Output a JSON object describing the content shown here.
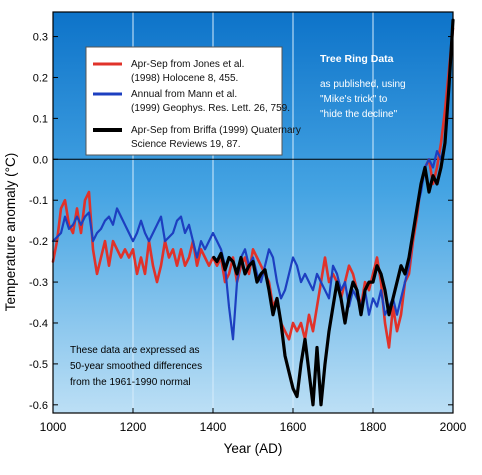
{
  "chart_data": {
    "type": "line",
    "xlabel": "Year (AD)",
    "ylabel": "Temperature anomaly (°C)",
    "xlim": [
      1000,
      2000
    ],
    "ylim": [
      -0.62,
      0.36
    ],
    "xticks": [
      "1000",
      "1200",
      "1400",
      "1600",
      "1800",
      "2000"
    ],
    "yticks": [
      "0.3",
      "0.2",
      "0.1",
      "0.0",
      "-0.1",
      "-0.2",
      "-0.3",
      "-0.4",
      "-0.5",
      "-0.6"
    ],
    "grid": "vertical lines at 1200, 1400, 1600, 1800",
    "legend_position": "top-left",
    "legend": [
      {
        "label_line1": "Apr-Sep from Jones et al.",
        "label_line2": "(1998) Holocene 8, 455.",
        "color": "#e0322a"
      },
      {
        "label_line1": "Annual from Mann et al.",
        "label_line2": "(1999) Geophys. Res. Lett. 26, 759.",
        "color": "#1d3fc0"
      },
      {
        "label_line1": "Apr-Sep from Briffa (1999) Quaternary",
        "label_line2": "Science Reviews 19, 87.",
        "color": "#000000"
      }
    ],
    "annotation_top": {
      "title": "Tree Ring Data",
      "lines": [
        "as published, using",
        "\"Mike's trick\" to",
        "\"hide the decline\""
      ]
    },
    "annotation_bottom": {
      "lines": [
        "These data are expressed as",
        "50-year smoothed differences",
        "from the 1961-1990 normal"
      ]
    },
    "series": [
      {
        "name": "Apr-Sep from Jones et al. (1998) Holocene 8, 455.",
        "color": "#e0322a",
        "x": [
          1000,
          1010,
          1020,
          1030,
          1040,
          1050,
          1060,
          1070,
          1080,
          1090,
          1100,
          1110,
          1120,
          1130,
          1140,
          1150,
          1160,
          1170,
          1180,
          1190,
          1200,
          1210,
          1220,
          1230,
          1240,
          1250,
          1260,
          1270,
          1280,
          1290,
          1300,
          1310,
          1320,
          1330,
          1340,
          1350,
          1360,
          1370,
          1380,
          1390,
          1400,
          1410,
          1420,
          1430,
          1440,
          1450,
          1460,
          1470,
          1480,
          1490,
          1500,
          1510,
          1520,
          1530,
          1540,
          1550,
          1560,
          1570,
          1580,
          1590,
          1600,
          1610,
          1620,
          1630,
          1640,
          1650,
          1660,
          1670,
          1680,
          1690,
          1700,
          1710,
          1720,
          1730,
          1740,
          1750,
          1760,
          1770,
          1780,
          1790,
          1800,
          1810,
          1820,
          1830,
          1840,
          1850,
          1860,
          1870,
          1880,
          1890,
          1900,
          1910,
          1920,
          1930,
          1940,
          1950,
          1960,
          1970,
          1980,
          1990,
          2000
        ],
        "values": [
          -0.25,
          -0.2,
          -0.12,
          -0.1,
          -0.16,
          -0.18,
          -0.12,
          -0.18,
          -0.1,
          -0.08,
          -0.22,
          -0.28,
          -0.24,
          -0.2,
          -0.26,
          -0.2,
          -0.22,
          -0.24,
          -0.22,
          -0.24,
          -0.22,
          -0.28,
          -0.24,
          -0.28,
          -0.2,
          -0.26,
          -0.3,
          -0.26,
          -0.2,
          -0.24,
          -0.22,
          -0.26,
          -0.22,
          -0.26,
          -0.24,
          -0.2,
          -0.26,
          -0.22,
          -0.24,
          -0.26,
          -0.24,
          -0.26,
          -0.24,
          -0.3,
          -0.28,
          -0.24,
          -0.3,
          -0.26,
          -0.24,
          -0.28,
          -0.22,
          -0.24,
          -0.26,
          -0.28,
          -0.3,
          -0.36,
          -0.34,
          -0.4,
          -0.42,
          -0.44,
          -0.4,
          -0.42,
          -0.4,
          -0.44,
          -0.38,
          -0.42,
          -0.36,
          -0.3,
          -0.24,
          -0.3,
          -0.28,
          -0.3,
          -0.34,
          -0.3,
          -0.26,
          -0.28,
          -0.32,
          -0.36,
          -0.3,
          -0.32,
          -0.28,
          -0.24,
          -0.3,
          -0.4,
          -0.46,
          -0.36,
          -0.42,
          -0.38,
          -0.3,
          -0.28,
          -0.2,
          -0.14,
          -0.06,
          -0.02,
          0.0,
          -0.06,
          -0.02,
          0.04,
          0.12,
          0.22,
          0.32
        ]
      },
      {
        "name": "Annual from Mann et al. (1999) Geophys. Res. Lett. 26, 759.",
        "color": "#1d3fc0",
        "x": [
          1000,
          1010,
          1020,
          1030,
          1040,
          1050,
          1060,
          1070,
          1080,
          1090,
          1100,
          1110,
          1120,
          1130,
          1140,
          1150,
          1160,
          1170,
          1180,
          1190,
          1200,
          1210,
          1220,
          1230,
          1240,
          1250,
          1260,
          1270,
          1280,
          1290,
          1300,
          1310,
          1320,
          1330,
          1340,
          1350,
          1360,
          1370,
          1380,
          1390,
          1400,
          1410,
          1420,
          1430,
          1440,
          1450,
          1460,
          1470,
          1480,
          1490,
          1500,
          1510,
          1520,
          1530,
          1540,
          1550,
          1560,
          1570,
          1580,
          1590,
          1600,
          1610,
          1620,
          1630,
          1640,
          1650,
          1660,
          1670,
          1680,
          1690,
          1700,
          1710,
          1720,
          1730,
          1740,
          1750,
          1760,
          1770,
          1780,
          1790,
          1800,
          1810,
          1820,
          1830,
          1840,
          1850,
          1860,
          1870,
          1880,
          1890,
          1900,
          1910,
          1920,
          1930,
          1940,
          1950,
          1960,
          1970,
          1980
        ],
        "values": [
          -0.2,
          -0.19,
          -0.18,
          -0.14,
          -0.17,
          -0.16,
          -0.14,
          -0.16,
          -0.14,
          -0.13,
          -0.2,
          -0.18,
          -0.17,
          -0.15,
          -0.14,
          -0.16,
          -0.12,
          -0.14,
          -0.16,
          -0.18,
          -0.2,
          -0.18,
          -0.15,
          -0.18,
          -0.2,
          -0.18,
          -0.16,
          -0.14,
          -0.2,
          -0.19,
          -0.18,
          -0.15,
          -0.14,
          -0.18,
          -0.16,
          -0.2,
          -0.24,
          -0.2,
          -0.22,
          -0.2,
          -0.18,
          -0.2,
          -0.22,
          -0.26,
          -0.36,
          -0.44,
          -0.3,
          -0.24,
          -0.22,
          -0.26,
          -0.24,
          -0.28,
          -0.3,
          -0.26,
          -0.22,
          -0.24,
          -0.3,
          -0.34,
          -0.32,
          -0.28,
          -0.24,
          -0.26,
          -0.3,
          -0.28,
          -0.3,
          -0.32,
          -0.28,
          -0.3,
          -0.32,
          -0.34,
          -0.26,
          -0.28,
          -0.32,
          -0.3,
          -0.36,
          -0.32,
          -0.34,
          -0.36,
          -0.32,
          -0.38,
          -0.34,
          -0.36,
          -0.32,
          -0.38,
          -0.36,
          -0.34,
          -0.38,
          -0.34,
          -0.3,
          -0.26,
          -0.18,
          -0.12,
          -0.08,
          -0.02,
          0.0,
          -0.02,
          0.02,
          0.0,
          0.04
        ]
      },
      {
        "name": "Apr-Sep from Briffa (1999) Quaternary Science Reviews 19, 87.",
        "color": "#000000",
        "x": [
          1402,
          1410,
          1420,
          1430,
          1440,
          1450,
          1460,
          1470,
          1480,
          1490,
          1500,
          1510,
          1520,
          1530,
          1540,
          1550,
          1560,
          1570,
          1580,
          1590,
          1600,
          1610,
          1620,
          1630,
          1640,
          1650,
          1660,
          1670,
          1680,
          1690,
          1700,
          1710,
          1720,
          1730,
          1740,
          1750,
          1760,
          1770,
          1780,
          1790,
          1800,
          1810,
          1820,
          1830,
          1840,
          1850,
          1860,
          1870,
          1880,
          1890,
          1900,
          1910,
          1920,
          1930,
          1940,
          1950,
          1960,
          1970,
          1980,
          1990,
          2000
        ],
        "values": [
          -0.24,
          -0.25,
          -0.23,
          -0.27,
          -0.24,
          -0.25,
          -0.28,
          -0.24,
          -0.28,
          -0.26,
          -0.25,
          -0.3,
          -0.28,
          -0.27,
          -0.32,
          -0.38,
          -0.34,
          -0.4,
          -0.48,
          -0.52,
          -0.56,
          -0.58,
          -0.5,
          -0.44,
          -0.52,
          -0.6,
          -0.46,
          -0.6,
          -0.5,
          -0.42,
          -0.36,
          -0.3,
          -0.34,
          -0.4,
          -0.34,
          -0.3,
          -0.32,
          -0.38,
          -0.32,
          -0.3,
          -0.3,
          -0.26,
          -0.28,
          -0.32,
          -0.38,
          -0.34,
          -0.3,
          -0.26,
          -0.28,
          -0.24,
          -0.18,
          -0.12,
          -0.06,
          -0.02,
          -0.08,
          -0.04,
          -0.06,
          -0.02,
          0.04,
          0.18,
          0.34
        ]
      }
    ]
  }
}
